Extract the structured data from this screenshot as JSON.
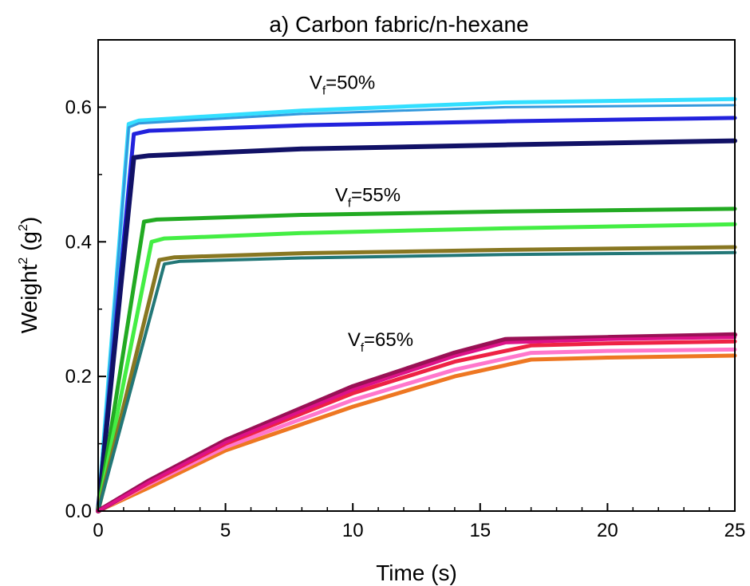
{
  "chart_data": {
    "type": "line",
    "title": "a) Carbon fabric/n-hexane",
    "xlabel": "Time (s)",
    "ylabel": "Weight",
    "ylabel_sup": "2",
    "ylabel_unit_open": " (g",
    "ylabel_unit_sup": "2",
    "ylabel_unit_close": ")",
    "xlim": [
      0,
      25
    ],
    "ylim": [
      0,
      0.7
    ],
    "xticks": [
      0,
      5,
      10,
      15,
      20,
      25
    ],
    "xtick_labels": [
      "0",
      "5",
      "10",
      "15",
      "20",
      "25"
    ],
    "yticks": [
      0.0,
      0.2,
      0.4,
      0.6
    ],
    "ytick_labels": [
      "0.0",
      "0.2",
      "0.4",
      "0.6"
    ],
    "grid": false,
    "annotations": [
      {
        "prefix": "V",
        "sub": "f",
        "text": "=50%",
        "x": 8.3,
        "y": 0.627
      },
      {
        "prefix": "V",
        "sub": "f",
        "text": "=55%",
        "x": 9.3,
        "y": 0.46
      },
      {
        "prefix": "V",
        "sub": "f",
        "text": "=65%",
        "x": 9.8,
        "y": 0.245
      }
    ],
    "series": [
      {
        "color": "#33dfff",
        "width": 5,
        "points": [
          [
            0,
            0
          ],
          [
            1.2,
            0.575
          ],
          [
            1.6,
            0.58
          ],
          [
            8,
            0.595
          ],
          [
            16,
            0.607
          ],
          [
            25,
            0.612
          ]
        ]
      },
      {
        "color": "#3399dd",
        "width": 3,
        "points": [
          [
            0,
            0
          ],
          [
            1.2,
            0.57
          ],
          [
            1.6,
            0.576
          ],
          [
            8,
            0.59
          ],
          [
            16,
            0.6
          ],
          [
            25,
            0.603
          ]
        ]
      },
      {
        "color": "#2222dd",
        "width": 5,
        "points": [
          [
            0,
            0
          ],
          [
            1.4,
            0.56
          ],
          [
            2,
            0.565
          ],
          [
            8,
            0.573
          ],
          [
            16,
            0.579
          ],
          [
            25,
            0.584
          ]
        ]
      },
      {
        "color": "#111166",
        "width": 6,
        "points": [
          [
            0,
            0
          ],
          [
            1.4,
            0.525
          ],
          [
            2,
            0.528
          ],
          [
            8,
            0.538
          ],
          [
            16,
            0.544
          ],
          [
            25,
            0.55
          ]
        ]
      },
      {
        "color": "#22aa22",
        "width": 5,
        "points": [
          [
            0,
            0
          ],
          [
            1.8,
            0.43
          ],
          [
            2.3,
            0.433
          ],
          [
            8,
            0.44
          ],
          [
            16,
            0.445
          ],
          [
            25,
            0.449
          ]
        ]
      },
      {
        "color": "#44ee44",
        "width": 5,
        "points": [
          [
            0,
            0
          ],
          [
            2.1,
            0.4
          ],
          [
            2.6,
            0.405
          ],
          [
            8,
            0.413
          ],
          [
            16,
            0.42
          ],
          [
            25,
            0.426
          ]
        ]
      },
      {
        "color": "#887722",
        "width": 5,
        "points": [
          [
            0,
            0
          ],
          [
            2.4,
            0.373
          ],
          [
            3,
            0.377
          ],
          [
            8,
            0.383
          ],
          [
            16,
            0.388
          ],
          [
            25,
            0.392
          ]
        ]
      },
      {
        "color": "#227777",
        "width": 4,
        "points": [
          [
            0,
            0
          ],
          [
            2.6,
            0.367
          ],
          [
            3.2,
            0.371
          ],
          [
            8,
            0.376
          ],
          [
            16,
            0.381
          ],
          [
            25,
            0.384
          ]
        ]
      },
      {
        "color": "#ee7722",
        "width": 5,
        "points": [
          [
            0,
            0
          ],
          [
            2,
            0.035
          ],
          [
            5,
            0.09
          ],
          [
            10,
            0.155
          ],
          [
            14,
            0.2
          ],
          [
            17,
            0.225
          ],
          [
            20,
            0.228
          ],
          [
            25,
            0.231
          ]
        ]
      },
      {
        "color": "#ff77cc",
        "width": 5,
        "points": [
          [
            0,
            0
          ],
          [
            2,
            0.04
          ],
          [
            5,
            0.095
          ],
          [
            10,
            0.165
          ],
          [
            14,
            0.21
          ],
          [
            17,
            0.235
          ],
          [
            20,
            0.238
          ],
          [
            25,
            0.24
          ]
        ]
      },
      {
        "color": "#ee2244",
        "width": 5,
        "points": [
          [
            0,
            0
          ],
          [
            2,
            0.042
          ],
          [
            5,
            0.1
          ],
          [
            10,
            0.175
          ],
          [
            14,
            0.222
          ],
          [
            17,
            0.246
          ],
          [
            20,
            0.249
          ],
          [
            25,
            0.252
          ]
        ]
      },
      {
        "color": "#991155",
        "width": 6,
        "points": [
          [
            0,
            0
          ],
          [
            2,
            0.045
          ],
          [
            5,
            0.105
          ],
          [
            10,
            0.185
          ],
          [
            14,
            0.235
          ],
          [
            16,
            0.255
          ],
          [
            20,
            0.258
          ],
          [
            25,
            0.262
          ]
        ]
      },
      {
        "color": "#dd1188",
        "width": 4,
        "points": [
          [
            0,
            0
          ],
          [
            2,
            0.043
          ],
          [
            5,
            0.102
          ],
          [
            10,
            0.18
          ],
          [
            14,
            0.23
          ],
          [
            16,
            0.25
          ],
          [
            20,
            0.255
          ],
          [
            25,
            0.258
          ]
        ]
      }
    ]
  }
}
